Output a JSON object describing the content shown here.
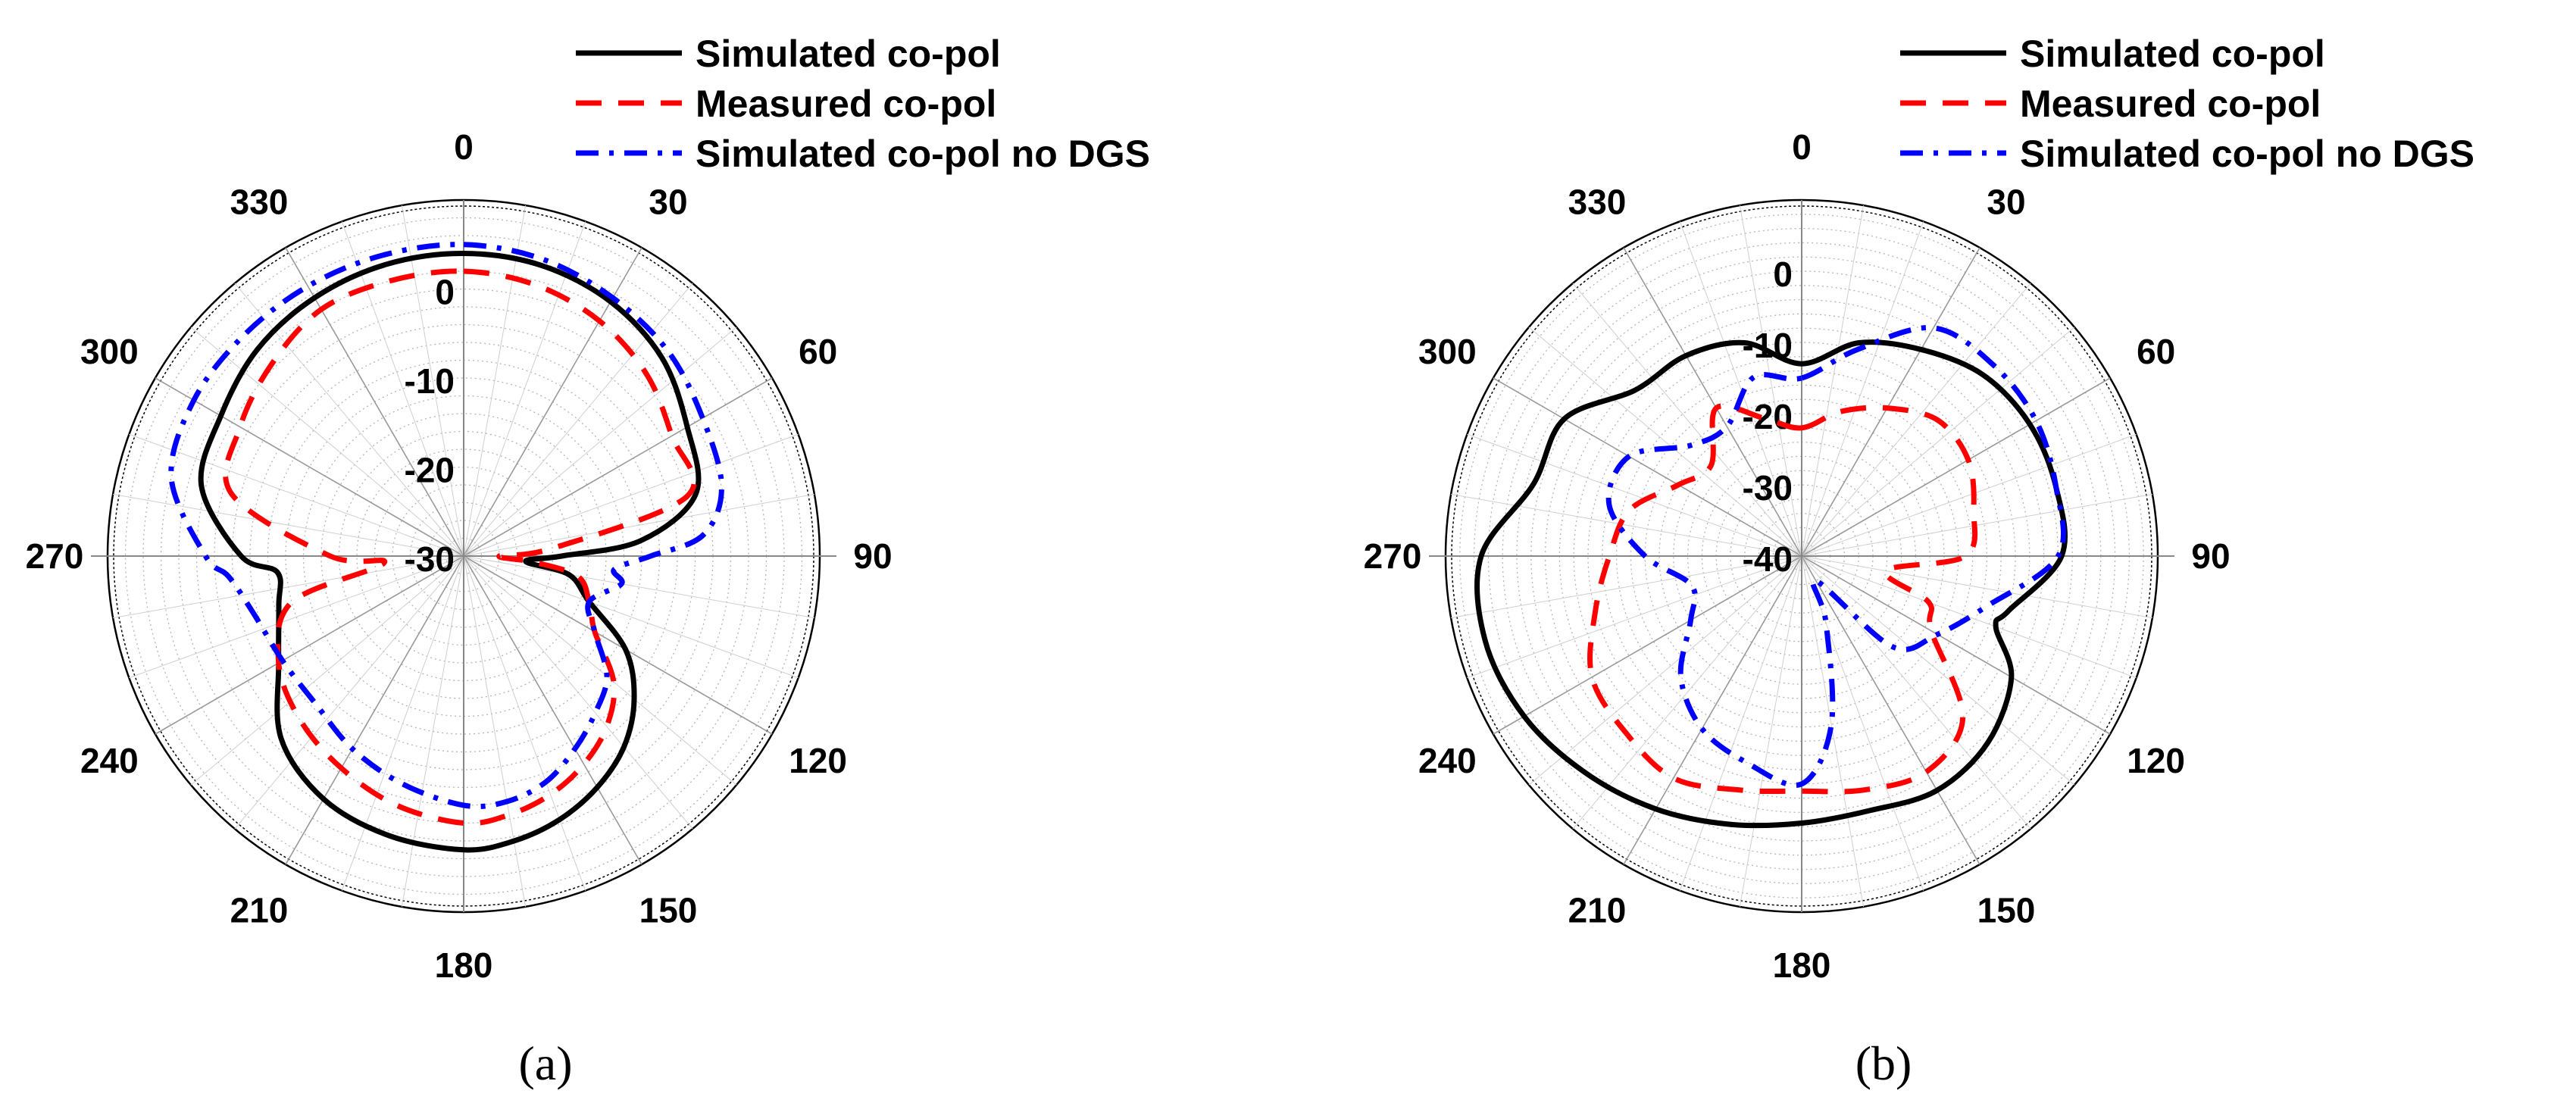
{
  "chart_data": [
    {
      "type": "polar-line",
      "panel_label": "(a)",
      "angle_ticks": [
        "0",
        "30",
        "60",
        "90",
        "120",
        "150",
        "180",
        "210",
        "240",
        "270",
        "300",
        "330"
      ],
      "radial_ticks": [
        "0",
        "-10",
        "-20",
        "-30"
      ],
      "rlim": [
        -30,
        10
      ],
      "legend_position": "top-right",
      "series": [
        {
          "name": "Simulated co-pol",
          "color": "#000000",
          "dash": "solid",
          "theta": [
            0,
            15,
            30,
            45,
            60,
            75,
            85,
            90,
            95,
            100,
            110,
            120,
            130,
            140,
            150,
            160,
            170,
            180,
            195,
            210,
            225,
            240,
            255,
            265,
            270,
            285,
            300,
            315,
            330,
            345,
            360
          ],
          "r": [
            4,
            3.8,
            3,
            1.5,
            -1,
            -3,
            -10,
            -19,
            -23,
            -18,
            -15,
            -9,
            -5,
            -2,
            0,
            1.5,
            2.5,
            3,
            2.5,
            1.5,
            -1,
            -6,
            -8.5,
            -9,
            -5,
            0.5,
            1.5,
            2.8,
            3.5,
            3.9,
            4
          ]
        },
        {
          "name": "Measured co-pol",
          "color": "#ff0000",
          "dash": "dash",
          "theta": [
            0,
            15,
            30,
            45,
            60,
            75,
            85,
            90,
            95,
            100,
            110,
            120,
            130,
            140,
            150,
            160,
            170,
            180,
            195,
            210,
            225,
            240,
            255,
            265,
            270,
            285,
            300,
            315,
            330,
            345,
            360
          ],
          "r": [
            2,
            1.5,
            0.5,
            -1,
            -3,
            -4,
            -20,
            -26,
            -22,
            -17,
            -15,
            -13,
            -8,
            -5,
            -3,
            -1.5,
            -0.5,
            0,
            -1,
            -2.5,
            -4,
            -6,
            -10,
            -21,
            -15,
            -3,
            -1,
            0.5,
            2,
            2,
            2
          ]
        },
        {
          "name": "Simulated co-pol no DGS",
          "color": "#0000ff",
          "dash": "dashdot",
          "theta": [
            0,
            15,
            30,
            45,
            60,
            75,
            85,
            90,
            95,
            100,
            110,
            120,
            130,
            140,
            150,
            160,
            170,
            180,
            195,
            210,
            225,
            240,
            255,
            265,
            270,
            285,
            300,
            315,
            330,
            345,
            360
          ],
          "r": [
            5,
            4.5,
            3.5,
            2.5,
            1,
            0,
            -3,
            -9,
            -13,
            -12,
            -15,
            -13,
            -9,
            -7,
            -5,
            -3,
            -2,
            -2,
            -3.5,
            -5,
            -6.5,
            -6.5,
            -5.5,
            -3.5,
            -1,
            4,
            5,
            5,
            5,
            5,
            5
          ]
        }
      ]
    },
    {
      "type": "polar-line",
      "panel_label": "(b)",
      "angle_ticks": [
        "0",
        "30",
        "60",
        "90",
        "120",
        "150",
        "180",
        "210",
        "240",
        "270",
        "300",
        "330"
      ],
      "radial_ticks": [
        "0",
        "-10",
        "-20",
        "-30",
        "-40"
      ],
      "rlim": [
        -40,
        10
      ],
      "legend_position": "top-right",
      "series": [
        {
          "name": "Simulated co-pol",
          "color": "#000000",
          "dash": "solid",
          "theta": [
            0,
            15,
            30,
            45,
            60,
            75,
            90,
            105,
            110,
            120,
            135,
            150,
            165,
            180,
            195,
            210,
            225,
            240,
            255,
            270,
            285,
            300,
            315,
            330,
            345,
            360
          ],
          "r": [
            -13,
            -9,
            -6.5,
            -4,
            -3,
            -3,
            -3.5,
            -10,
            -11,
            -6,
            -3,
            -2,
            -3,
            -2.5,
            -1,
            1,
            3,
            5,
            6,
            5,
            -1,
            -1.5,
            -7,
            -7.5,
            -9,
            -13
          ]
        },
        {
          "name": "Measured co-pol",
          "color": "#ff0000",
          "dash": "dash",
          "theta": [
            0,
            15,
            30,
            45,
            60,
            75,
            90,
            100,
            110,
            120,
            135,
            150,
            165,
            180,
            195,
            210,
            225,
            240,
            255,
            270,
            285,
            300,
            315,
            330,
            345,
            360
          ],
          "r": [
            -22,
            -19,
            -16,
            -13,
            -13,
            -15,
            -17,
            -28,
            -21,
            -19,
            -8,
            -5,
            -6,
            -7,
            -6,
            -4,
            -5,
            -6,
            -10,
            -13,
            -15,
            -20,
            -22,
            -16,
            -20,
            -22
          ]
        },
        {
          "name": "Simulated co-pol no DGS",
          "color": "#0000ff",
          "dash": "dashdot",
          "theta": [
            0,
            15,
            30,
            45,
            60,
            75,
            90,
            105,
            120,
            135,
            150,
            160,
            170,
            180,
            195,
            210,
            225,
            240,
            255,
            270,
            285,
            300,
            315,
            330,
            345,
            360
          ],
          "r": [
            -15,
            -10,
            -3,
            -2,
            -2,
            -3,
            -4,
            -13,
            -18,
            -22,
            -36,
            -30,
            -16,
            -8,
            -10,
            -12,
            -16,
            -22,
            -24,
            -18,
            -12,
            -12,
            -18,
            -19,
            -14,
            -15
          ]
        }
      ]
    }
  ]
}
